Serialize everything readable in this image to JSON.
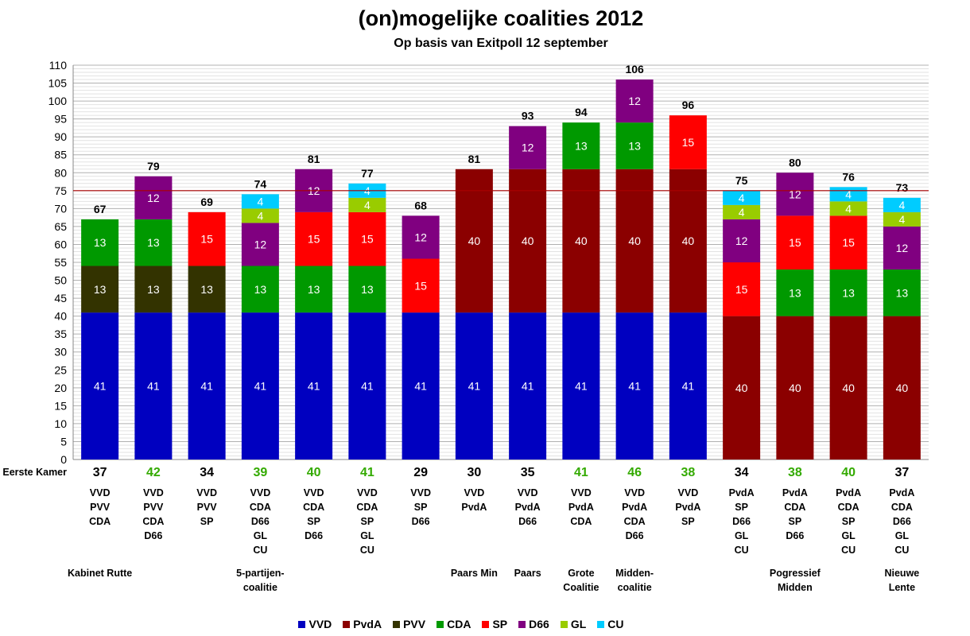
{
  "chart_data": {
    "type": "bar",
    "stacked": true,
    "title": "(on)mogelijke coalities 2012",
    "subtitle": "Op basis van Exitpoll 12 september",
    "ylim": [
      0,
      110
    ],
    "ytick_step": 5,
    "majority_line": 75,
    "grid": true,
    "legend_position": "bottom",
    "columns": [
      {
        "total": 67,
        "eerste_kamer": 37,
        "ek_majority": false,
        "parties": [
          "VVD",
          "PVV",
          "CDA"
        ],
        "name": "Kabinet Rutte",
        "segments": [
          {
            "party": "VVD",
            "value": 41
          },
          {
            "party": "PVV",
            "value": 13
          },
          {
            "party": "CDA",
            "value": 13
          }
        ]
      },
      {
        "total": 79,
        "eerste_kamer": 42,
        "ek_majority": true,
        "parties": [
          "VVD",
          "PVV",
          "CDA",
          "D66"
        ],
        "name": "",
        "segments": [
          {
            "party": "VVD",
            "value": 41
          },
          {
            "party": "PVV",
            "value": 13
          },
          {
            "party": "CDA",
            "value": 13
          },
          {
            "party": "D66",
            "value": 12
          }
        ]
      },
      {
        "total": 69,
        "eerste_kamer": 34,
        "ek_majority": false,
        "parties": [
          "VVD",
          "PVV",
          "SP"
        ],
        "name": "",
        "segments": [
          {
            "party": "VVD",
            "value": 41
          },
          {
            "party": "PVV",
            "value": 13
          },
          {
            "party": "SP",
            "value": 15
          }
        ]
      },
      {
        "total": 74,
        "eerste_kamer": 39,
        "ek_majority": true,
        "parties": [
          "VVD",
          "CDA",
          "D66",
          "GL",
          "CU"
        ],
        "name": "5-partijen-\ncoalitie",
        "segments": [
          {
            "party": "VVD",
            "value": 41
          },
          {
            "party": "CDA",
            "value": 13
          },
          {
            "party": "D66",
            "value": 12
          },
          {
            "party": "GL",
            "value": 4
          },
          {
            "party": "CU",
            "value": 4
          }
        ]
      },
      {
        "total": 81,
        "eerste_kamer": 40,
        "ek_majority": true,
        "parties": [
          "VVD",
          "CDA",
          "SP",
          "D66"
        ],
        "name": "",
        "segments": [
          {
            "party": "VVD",
            "value": 41
          },
          {
            "party": "CDA",
            "value": 13
          },
          {
            "party": "SP",
            "value": 15
          },
          {
            "party": "D66",
            "value": 12
          }
        ]
      },
      {
        "total": 77,
        "eerste_kamer": 41,
        "ek_majority": true,
        "parties": [
          "VVD",
          "CDA",
          "SP",
          "GL",
          "CU"
        ],
        "name": "",
        "segments": [
          {
            "party": "VVD",
            "value": 41
          },
          {
            "party": "CDA",
            "value": 13
          },
          {
            "party": "SP",
            "value": 15
          },
          {
            "party": "GL",
            "value": 4
          },
          {
            "party": "CU",
            "value": 4
          }
        ]
      },
      {
        "total": 68,
        "eerste_kamer": 29,
        "ek_majority": false,
        "parties": [
          "VVD",
          "SP",
          "D66"
        ],
        "name": "",
        "segments": [
          {
            "party": "VVD",
            "value": 41
          },
          {
            "party": "SP",
            "value": 15
          },
          {
            "party": "D66",
            "value": 12
          }
        ]
      },
      {
        "total": 81,
        "eerste_kamer": 30,
        "ek_majority": false,
        "parties": [
          "VVD",
          "PvdA"
        ],
        "name": "Paars Min",
        "segments": [
          {
            "party": "VVD",
            "value": 41
          },
          {
            "party": "PvdA",
            "value": 40
          }
        ]
      },
      {
        "total": 93,
        "eerste_kamer": 35,
        "ek_majority": false,
        "parties": [
          "VVD",
          "PvdA",
          "D66"
        ],
        "name": "Paars",
        "segments": [
          {
            "party": "VVD",
            "value": 41
          },
          {
            "party": "PvdA",
            "value": 40
          },
          {
            "party": "D66",
            "value": 12
          }
        ]
      },
      {
        "total": 94,
        "eerste_kamer": 41,
        "ek_majority": true,
        "parties": [
          "VVD",
          "PvdA",
          "CDA"
        ],
        "name": "Grote\nCoalitie",
        "segments": [
          {
            "party": "VVD",
            "value": 41
          },
          {
            "party": "PvdA",
            "value": 40
          },
          {
            "party": "CDA",
            "value": 13
          }
        ]
      },
      {
        "total": 106,
        "eerste_kamer": 46,
        "ek_majority": true,
        "parties": [
          "VVD",
          "PvdA",
          "CDA",
          "D66"
        ],
        "name": "Midden-\ncoalitie",
        "segments": [
          {
            "party": "VVD",
            "value": 41
          },
          {
            "party": "PvdA",
            "value": 40
          },
          {
            "party": "CDA",
            "value": 13
          },
          {
            "party": "D66",
            "value": 12
          }
        ]
      },
      {
        "total": 96,
        "eerste_kamer": 38,
        "ek_majority": true,
        "parties": [
          "VVD",
          "PvdA",
          "SP"
        ],
        "name": "",
        "segments": [
          {
            "party": "VVD",
            "value": 41
          },
          {
            "party": "PvdA",
            "value": 40
          },
          {
            "party": "SP",
            "value": 15
          }
        ]
      },
      {
        "total": 75,
        "eerste_kamer": 34,
        "ek_majority": false,
        "parties": [
          "PvdA",
          "SP",
          "D66",
          "GL",
          "CU"
        ],
        "name": "",
        "segments": [
          {
            "party": "PvdA",
            "value": 40
          },
          {
            "party": "SP",
            "value": 15
          },
          {
            "party": "D66",
            "value": 12
          },
          {
            "party": "GL",
            "value": 4
          },
          {
            "party": "CU",
            "value": 4
          }
        ]
      },
      {
        "total": 80,
        "eerste_kamer": 38,
        "ek_majority": true,
        "parties": [
          "PvdA",
          "CDA",
          "SP",
          "D66"
        ],
        "name": "Pogressief\nMidden",
        "segments": [
          {
            "party": "PvdA",
            "value": 40
          },
          {
            "party": "CDA",
            "value": 13
          },
          {
            "party": "SP",
            "value": 15
          },
          {
            "party": "D66",
            "value": 12
          }
        ]
      },
      {
        "total": 76,
        "eerste_kamer": 40,
        "ek_majority": true,
        "parties": [
          "PvdA",
          "CDA",
          "SP",
          "GL",
          "CU"
        ],
        "name": "",
        "segments": [
          {
            "party": "PvdA",
            "value": 40
          },
          {
            "party": "CDA",
            "value": 13
          },
          {
            "party": "SP",
            "value": 15
          },
          {
            "party": "GL",
            "value": 4
          },
          {
            "party": "CU",
            "value": 4
          }
        ]
      },
      {
        "total": 73,
        "eerste_kamer": 37,
        "ek_majority": false,
        "parties": [
          "PvdA",
          "CDA",
          "D66",
          "GL",
          "CU"
        ],
        "name": "Nieuwe\nLente",
        "segments": [
          {
            "party": "PvdA",
            "value": 40
          },
          {
            "party": "CDA",
            "value": 13
          },
          {
            "party": "D66",
            "value": 12
          },
          {
            "party": "GL",
            "value": 4
          },
          {
            "party": "CU",
            "value": 4
          }
        ]
      }
    ],
    "row_label": "Eerste Kamer",
    "legend": [
      "VVD",
      "PvdA",
      "PVV",
      "CDA",
      "SP",
      "D66",
      "GL",
      "CU"
    ],
    "colors": {
      "VVD": "#0000c0",
      "PvdA": "#8b0000",
      "PVV": "#333300",
      "CDA": "#009900",
      "SP": "#ff0000",
      "D66": "#800080",
      "GL": "#99cc00",
      "CU": "#00ccff",
      "ek_majority_text": "#33aa00",
      "majority_line": "#aa0000",
      "grid": "#bbbbbb"
    }
  }
}
